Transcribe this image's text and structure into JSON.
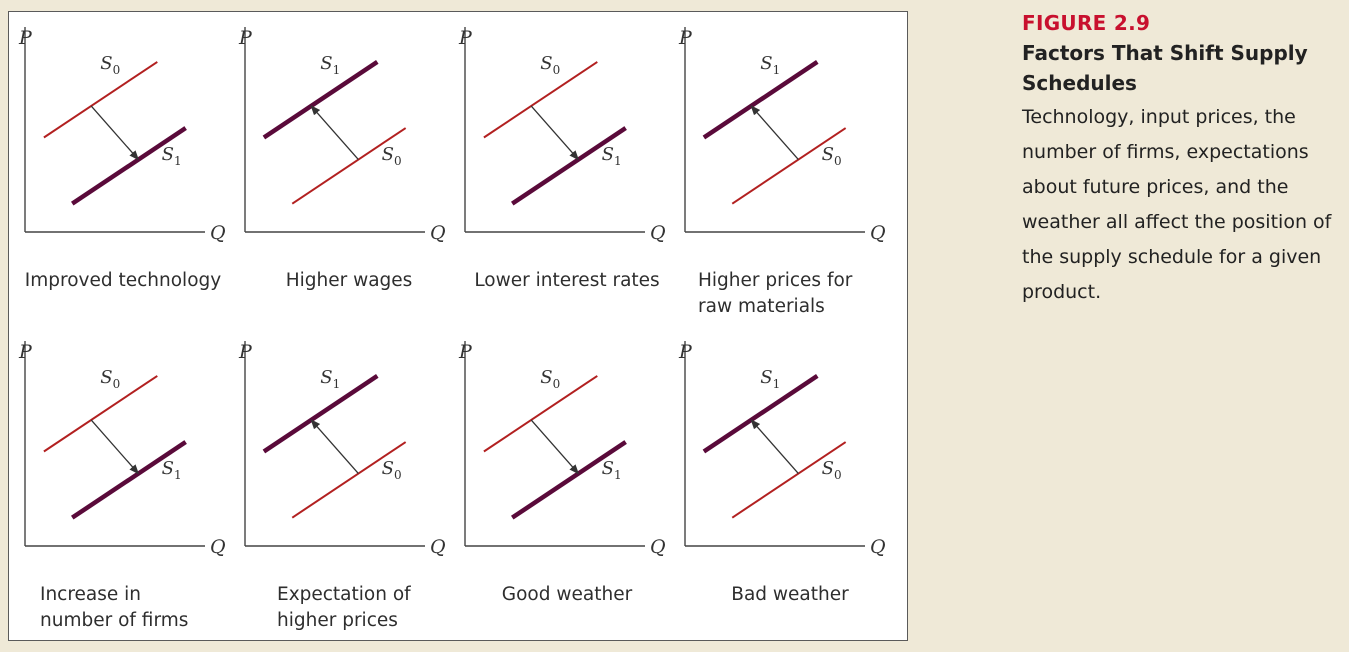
{
  "figure": {
    "number": "FIGURE 2.9",
    "title": "Factors That Shift Supply Schedules",
    "description": "Technology, input prices, the number of firms, expectations about future prices, and the weather all affect the position of the supply schedule for a given product."
  },
  "colors": {
    "original_curve": "#b22020",
    "shifted_curve": "#5a0a3a",
    "axis": "#444444",
    "arrow": "#333333"
  },
  "chart_data": [
    {
      "type": "line",
      "caption": [
        "Improved technology"
      ],
      "xlabel": "Q",
      "ylabel": "P",
      "shift": "right",
      "series": [
        {
          "name": "S0",
          "thick": false,
          "x": [
            1,
            7
          ],
          "y": [
            5,
            9
          ]
        },
        {
          "name": "S1",
          "thick": true,
          "x": [
            2.5,
            8.5
          ],
          "y": [
            1.5,
            5.5
          ]
        }
      ]
    },
    {
      "type": "line",
      "caption": [
        "Higher wages"
      ],
      "xlabel": "Q",
      "ylabel": "P",
      "shift": "left",
      "series": [
        {
          "name": "S1",
          "thick": true,
          "x": [
            1,
            7
          ],
          "y": [
            5,
            9
          ]
        },
        {
          "name": "S0",
          "thick": false,
          "x": [
            2.5,
            8.5
          ],
          "y": [
            1.5,
            5.5
          ]
        }
      ]
    },
    {
      "type": "line",
      "caption": [
        "Lower interest rates"
      ],
      "xlabel": "Q",
      "ylabel": "P",
      "shift": "right",
      "series": [
        {
          "name": "S0",
          "thick": false,
          "x": [
            1,
            7
          ],
          "y": [
            5,
            9
          ]
        },
        {
          "name": "S1",
          "thick": true,
          "x": [
            2.5,
            8.5
          ],
          "y": [
            1.5,
            5.5
          ]
        }
      ]
    },
    {
      "type": "line",
      "caption": [
        "Higher prices for",
        "raw materials"
      ],
      "xlabel": "Q",
      "ylabel": "P",
      "shift": "left",
      "series": [
        {
          "name": "S1",
          "thick": true,
          "x": [
            1,
            7
          ],
          "y": [
            5,
            9
          ]
        },
        {
          "name": "S0",
          "thick": false,
          "x": [
            2.5,
            8.5
          ],
          "y": [
            1.5,
            5.5
          ]
        }
      ]
    },
    {
      "type": "line",
      "caption": [
        "Increase in",
        "number of firms"
      ],
      "xlabel": "Q",
      "ylabel": "P",
      "shift": "right",
      "series": [
        {
          "name": "S0",
          "thick": false,
          "x": [
            1,
            7
          ],
          "y": [
            5,
            9
          ]
        },
        {
          "name": "S1",
          "thick": true,
          "x": [
            2.5,
            8.5
          ],
          "y": [
            1.5,
            5.5
          ]
        }
      ]
    },
    {
      "type": "line",
      "caption": [
        "Expectation of",
        "higher prices"
      ],
      "xlabel": "Q",
      "ylabel": "P",
      "shift": "left",
      "series": [
        {
          "name": "S1",
          "thick": true,
          "x": [
            1,
            7
          ],
          "y": [
            5,
            9
          ]
        },
        {
          "name": "S0",
          "thick": false,
          "x": [
            2.5,
            8.5
          ],
          "y": [
            1.5,
            5.5
          ]
        }
      ]
    },
    {
      "type": "line",
      "caption": [
        "Good weather"
      ],
      "xlabel": "Q",
      "ylabel": "P",
      "shift": "right",
      "series": [
        {
          "name": "S0",
          "thick": false,
          "x": [
            1,
            7
          ],
          "y": [
            5,
            9
          ]
        },
        {
          "name": "S1",
          "thick": true,
          "x": [
            2.5,
            8.5
          ],
          "y": [
            1.5,
            5.5
          ]
        }
      ]
    },
    {
      "type": "line",
      "caption": [
        "Bad weather"
      ],
      "xlabel": "Q",
      "ylabel": "P",
      "shift": "left",
      "series": [
        {
          "name": "S1",
          "thick": true,
          "x": [
            1,
            7
          ],
          "y": [
            5,
            9
          ]
        },
        {
          "name": "S0",
          "thick": false,
          "x": [
            2.5,
            8.5
          ],
          "y": [
            1.5,
            5.5
          ]
        }
      ]
    }
  ]
}
